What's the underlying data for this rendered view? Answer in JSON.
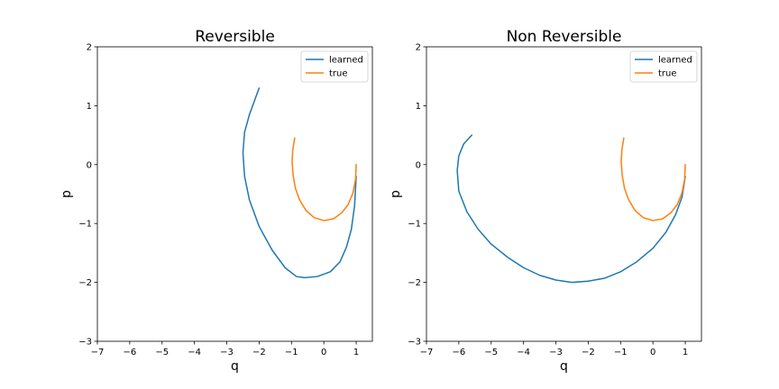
{
  "chart_data": [
    {
      "type": "line",
      "title": "Reversible",
      "xlabel": "q",
      "ylabel": "p",
      "xlim": [
        -7,
        1.5
      ],
      "ylim": [
        -3,
        2
      ],
      "xticks": [
        -7,
        -6,
        -5,
        -4,
        -3,
        -2,
        -1,
        0,
        1
      ],
      "yticks": [
        -3,
        -2,
        -1,
        0,
        1,
        2
      ],
      "tick_labels_x": [
        "−7",
        "−6",
        "−5",
        "−4",
        "−3",
        "−2",
        "−1",
        "0",
        "1"
      ],
      "tick_labels_y": [
        "−3",
        "−2",
        "−1",
        "0",
        "1",
        "2"
      ],
      "grid": false,
      "legend": "top-right",
      "series": [
        {
          "name": "learned",
          "color": "#1f77b4",
          "x": [
            1.0,
            0.95,
            0.85,
            0.7,
            0.5,
            0.2,
            -0.2,
            -0.6,
            -0.85,
            -1.2,
            -1.6,
            -2.0,
            -2.3,
            -2.45,
            -2.5,
            -2.45,
            -2.3,
            -2.1,
            -2.0
          ],
          "y": [
            -0.2,
            -0.7,
            -1.1,
            -1.4,
            -1.65,
            -1.82,
            -1.9,
            -1.92,
            -1.9,
            -1.75,
            -1.45,
            -1.05,
            -0.6,
            -0.2,
            0.2,
            0.55,
            0.85,
            1.15,
            1.3
          ]
        },
        {
          "name": "true",
          "color": "#ff7f0e",
          "x": [
            1.0,
            0.98,
            0.9,
            0.75,
            0.55,
            0.3,
            0.0,
            -0.3,
            -0.55,
            -0.75,
            -0.88,
            -0.95,
            -0.98,
            -0.96,
            -0.9
          ],
          "y": [
            0.0,
            -0.25,
            -0.48,
            -0.68,
            -0.82,
            -0.92,
            -0.95,
            -0.9,
            -0.78,
            -0.6,
            -0.4,
            -0.18,
            0.05,
            0.25,
            0.45
          ]
        }
      ]
    },
    {
      "type": "line",
      "title": "Non Reversible",
      "xlabel": "q",
      "ylabel": "p",
      "xlim": [
        -7,
        1.5
      ],
      "ylim": [
        -3,
        2
      ],
      "xticks": [
        -7,
        -6,
        -5,
        -4,
        -3,
        -2,
        -1,
        0,
        1
      ],
      "yticks": [
        -3,
        -2,
        -1,
        0,
        1,
        2
      ],
      "tick_labels_x": [
        "−7",
        "−6",
        "−5",
        "−4",
        "−3",
        "−2",
        "−1",
        "0",
        "1"
      ],
      "tick_labels_y": [
        "−3",
        "−2",
        "−1",
        "0",
        "1",
        "2"
      ],
      "grid": false,
      "legend": "top-right",
      "series": [
        {
          "name": "learned",
          "color": "#1f77b4",
          "x": [
            1.0,
            0.9,
            0.7,
            0.4,
            0.0,
            -0.5,
            -1.0,
            -1.5,
            -2.0,
            -2.5,
            -3.0,
            -3.5,
            -4.0,
            -4.5,
            -5.0,
            -5.4,
            -5.75,
            -6.0,
            -6.05,
            -6.0,
            -5.85,
            -5.6
          ],
          "y": [
            -0.2,
            -0.55,
            -0.85,
            -1.15,
            -1.42,
            -1.65,
            -1.82,
            -1.93,
            -1.98,
            -2.0,
            -1.96,
            -1.88,
            -1.75,
            -1.57,
            -1.35,
            -1.1,
            -0.8,
            -0.45,
            -0.1,
            0.15,
            0.35,
            0.5
          ]
        },
        {
          "name": "true",
          "color": "#ff7f0e",
          "x": [
            1.0,
            0.98,
            0.9,
            0.75,
            0.55,
            0.3,
            0.0,
            -0.3,
            -0.55,
            -0.75,
            -0.88,
            -0.95,
            -0.98,
            -0.96,
            -0.9
          ],
          "y": [
            0.0,
            -0.25,
            -0.48,
            -0.68,
            -0.82,
            -0.92,
            -0.95,
            -0.9,
            -0.78,
            -0.6,
            -0.4,
            -0.18,
            0.05,
            0.25,
            0.45
          ]
        }
      ]
    }
  ]
}
